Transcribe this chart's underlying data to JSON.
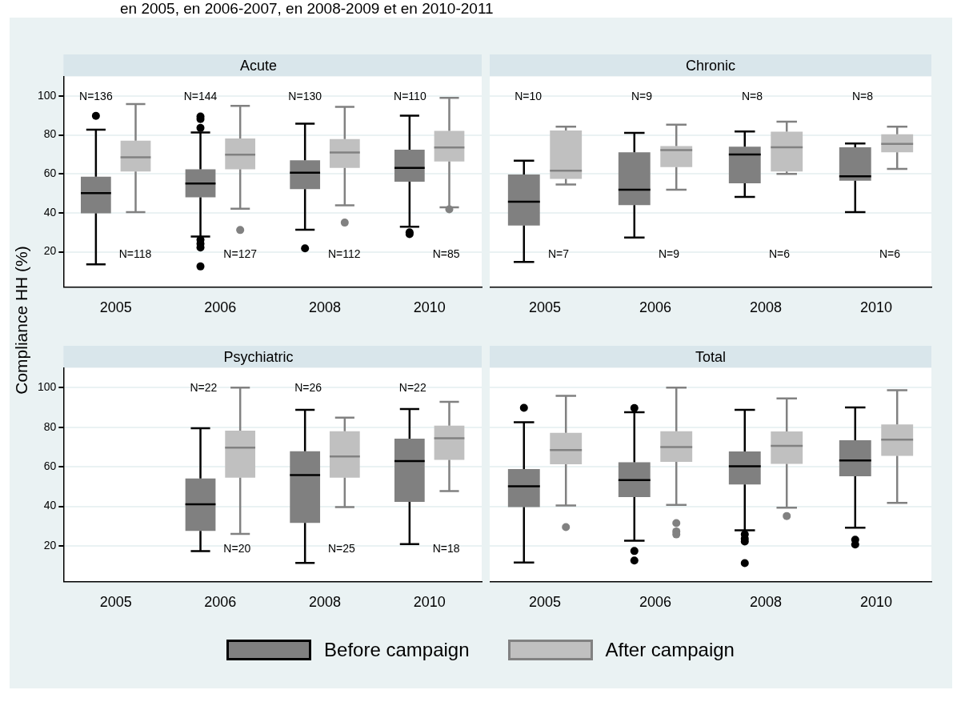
{
  "chart_data": [
    {
      "type": "box",
      "title": "Acute",
      "ylabel": "Compliance HH (%)",
      "categories": [
        "2005",
        "2006",
        "2008",
        "2010"
      ],
      "ylim": [
        2,
        110
      ],
      "yticks": [
        20,
        40,
        60,
        80,
        100
      ],
      "grid": "y",
      "legend": "bottom",
      "series": [
        {
          "name": "Before campaign",
          "color": "#808080",
          "boxes": [
            {
              "low": 13.6,
              "q1": 39.8,
              "median": 50.1,
              "q3": 58.6,
              "high": 82.7,
              "outliers": [
                89.8
              ]
            },
            {
              "low": 27.8,
              "q1": 48.0,
              "median": 55.1,
              "q3": 62.4,
              "high": 81.3,
              "outliers": [
                89.5,
                88.2,
                83.6,
                26.2,
                24.1,
                22.2,
                12.5
              ]
            },
            {
              "low": 31.3,
              "q1": 52.2,
              "median": 60.6,
              "q3": 67.0,
              "high": 85.8,
              "outliers": [
                21.8
              ]
            },
            {
              "low": 32.9,
              "q1": 56.0,
              "median": 63.1,
              "q3": 72.4,
              "high": 89.9,
              "outliers": [
                30.0,
                29.1
              ]
            }
          ]
        },
        {
          "name": "After campaign",
          "color": "#c0c0c0",
          "boxes": [
            {
              "low": 40.4,
              "q1": 61.2,
              "median": 68.5,
              "q3": 77.1,
              "high": 95.9
            },
            {
              "low": 42.1,
              "q1": 62.4,
              "median": 69.9,
              "q3": 78.2,
              "high": 94.9,
              "outliers": [
                31.2
              ]
            },
            {
              "low": 43.9,
              "q1": 63.1,
              "median": 71.0,
              "q3": 77.9,
              "high": 94.4,
              "outliers": [
                35.0
              ]
            },
            {
              "low": 42.9,
              "q1": 66.4,
              "median": 73.6,
              "q3": 82.1,
              "high": 99.0,
              "outliers": [
                41.8
              ]
            }
          ]
        }
      ],
      "subtitle": "en 2005, en 2006-2007, en 2008-2009 et en 2010-2011",
      "annotations": [
        "N=136",
        "N=118",
        "N=144",
        "N=127",
        "N=130",
        "N=112",
        "N=110",
        "N=85"
      ]
    },
    {
      "type": "box",
      "title": "Chronic",
      "categories": [
        "2005",
        "2006",
        "2008",
        "2010"
      ],
      "ylim": [
        2,
        110
      ],
      "yticks": [
        20,
        40,
        60,
        80,
        100
      ],
      "grid": "y",
      "tick_labels": "x",
      "series": [
        {
          "color": "#808080",
          "boxes": [
            {
              "low": 14.8,
              "q1": 33.5,
              "median": 45.7,
              "q3": 59.7,
              "high": 66.8
            },
            {
              "low": 27.3,
              "q1": 44.0,
              "median": 51.9,
              "q3": 71.1,
              "high": 81.1
            },
            {
              "low": 48.2,
              "q1": 55.2,
              "median": 70.0,
              "q3": 74.0,
              "high": 81.8
            },
            {
              "low": 40.4,
              "q1": 56.5,
              "median": 58.8,
              "q3": 73.7,
              "high": 75.6
            }
          ]
        },
        {
          "color": "#c0c0c0",
          "boxes": [
            {
              "low": 54.6,
              "q1": 57.4,
              "median": 61.6,
              "q3": 82.3,
              "high": 84.3
            },
            {
              "low": 51.9,
              "q1": 63.5,
              "median": 72.2,
              "q3": 74.3,
              "high": 85.3
            },
            {
              "low": 60.0,
              "q1": 61.2,
              "median": 73.7,
              "q3": 81.7,
              "high": 86.8
            },
            {
              "low": 62.6,
              "q1": 71.1,
              "median": 75.4,
              "q3": 80.4,
              "high": 84.3
            }
          ]
        }
      ],
      "annotations": [
        "N=10",
        "N=7",
        "N=9",
        "N=9",
        "N=8",
        "N=6",
        "N=8",
        "N=6"
      ]
    },
    {
      "type": "box",
      "title": "Psychiatric",
      "categories": [
        "2005",
        "2006",
        "2008",
        "2010"
      ],
      "ylim": [
        2,
        110
      ],
      "yticks": [
        20,
        40,
        60,
        80,
        100
      ],
      "grid": "y",
      "series": [
        {
          "color": "#808080",
          "boxes": [
            null,
            {
              "low": 17.3,
              "q1": 27.6,
              "median": 41.0,
              "q3": 54.1,
              "high": 79.5
            },
            {
              "low": 11.4,
              "q1": 31.6,
              "median": 55.8,
              "q3": 67.8,
              "high": 88.8
            },
            {
              "low": 20.9,
              "q1": 42.2,
              "median": 62.9,
              "q3": 74.2,
              "high": 89.2
            }
          ]
        },
        {
          "color": "#c0c0c0",
          "boxes": [
            null,
            {
              "low": 26.0,
              "q1": 54.5,
              "median": 69.7,
              "q3": 78.3,
              "high": 100
            },
            {
              "low": 39.6,
              "q1": 54.5,
              "median": 65.2,
              "q3": 78.0,
              "high": 84.8
            },
            {
              "low": 47.7,
              "q1": 63.5,
              "median": 74.4,
              "q3": 80.8,
              "high": 92.8
            }
          ]
        }
      ],
      "annotations": [
        "N=22",
        "N=20",
        "N=26",
        "N=25",
        "N=22",
        "N=18"
      ]
    },
    {
      "type": "box",
      "title": "Total",
      "categories": [
        "2005",
        "2006",
        "2008",
        "2010"
      ],
      "ylim": [
        2,
        110
      ],
      "yticks": [
        20,
        40,
        60,
        80,
        100
      ],
      "grid": "y",
      "tick_labels": "x",
      "series": [
        {
          "color": "#808080",
          "boxes": [
            {
              "low": 11.6,
              "q1": 39.6,
              "median": 50.1,
              "q3": 58.8,
              "high": 82.5,
              "outliers": [
                89.8
              ]
            },
            {
              "low": 22.6,
              "q1": 44.7,
              "median": 53.3,
              "q3": 62.3,
              "high": 87.6,
              "outliers": [
                89.7,
                17.4,
                12.6
              ]
            },
            {
              "low": 27.9,
              "q1": 51.0,
              "median": 60.3,
              "q3": 67.7,
              "high": 88.8,
              "outliers": [
                25.8,
                23.6,
                22.2,
                11.3
              ]
            },
            {
              "low": 29.2,
              "q1": 55.2,
              "median": 63.2,
              "q3": 73.4,
              "high": 90.0,
              "outliers": [
                23.1,
                20.7
              ]
            }
          ]
        },
        {
          "color": "#c0c0c0",
          "boxes": [
            {
              "low": 40.4,
              "q1": 61.3,
              "median": 68.4,
              "q3": 77.2,
              "high": 95.9,
              "outliers": [
                29.5
              ]
            },
            {
              "low": 40.7,
              "q1": 62.5,
              "median": 70.0,
              "q3": 78.0,
              "high": 100,
              "outliers": [
                31.5,
                27.3,
                25.8
              ]
            },
            {
              "low": 39.3,
              "q1": 61.5,
              "median": 70.6,
              "q3": 77.9,
              "high": 94.6,
              "outliers": [
                35.1
              ]
            },
            {
              "low": 41.7,
              "q1": 65.5,
              "median": 73.7,
              "q3": 81.4,
              "high": 98.7
            }
          ]
        }
      ]
    }
  ]
}
